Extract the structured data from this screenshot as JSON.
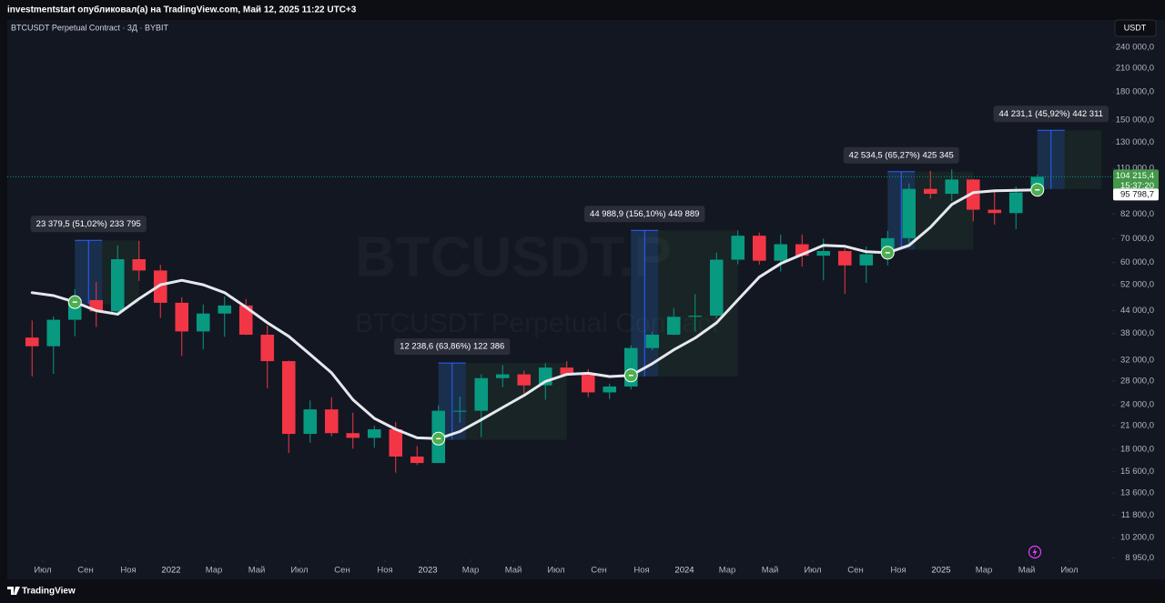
{
  "header": {
    "author_line": "investmentstart опубликовал(а) на TradingView.com, Май 12, 2025 11:22 UTC+3",
    "footer_logo": "TradingView"
  },
  "chart_data": {
    "type": "candlestick",
    "title": "BTCUSDT Perpetual Contract · 3Д · BYBIT",
    "watermark": "BTCUSDT.P",
    "watermark_sub": "BTCUSDT Perpetual Contract",
    "currency": "USDT",
    "log_scale": true,
    "grid": false,
    "colors": {
      "up": "#089981",
      "down": "#f23645",
      "ma": "#e6e8ee",
      "signal": "#4caf50"
    },
    "x": [
      "2021-06",
      "2021-07",
      "2021-08",
      "2021-09",
      "2021-10",
      "2021-11",
      "2021-12",
      "2022-01",
      "2022-02",
      "2022-03",
      "2022-04",
      "2022-05",
      "2022-06",
      "2022-07",
      "2022-08",
      "2022-09",
      "2022-10",
      "2022-11",
      "2022-12",
      "2023-01",
      "2023-02",
      "2023-03",
      "2023-04",
      "2023-05",
      "2023-06",
      "2023-07",
      "2023-08",
      "2023-09",
      "2023-10",
      "2023-11",
      "2023-12",
      "2024-01",
      "2024-02",
      "2024-03",
      "2024-04",
      "2024-05",
      "2024-06",
      "2024-07",
      "2024-08",
      "2024-09",
      "2024-10",
      "2024-11",
      "2024-12",
      "2025-01",
      "2025-02",
      "2025-03",
      "2025-04",
      "2025-05"
    ],
    "open": [
      37000,
      35000,
      41500,
      47100,
      43800,
      61300,
      57000,
      46300,
      38500,
      43200,
      45500,
      37700,
      31800,
      19900,
      23300,
      20000,
      19400,
      20500,
      17200,
      16500,
      23100,
      23100,
      28500,
      29200,
      27200,
      30500,
      29200,
      26000,
      27000,
      34600,
      37700,
      42300,
      42600,
      61100,
      71300,
      60700,
      67500,
      62700,
      64600,
      58900,
      63300,
      70200,
      96400,
      93400,
      102400,
      84300,
      82500,
      94200
    ],
    "high": [
      41300,
      42400,
      50500,
      52900,
      67000,
      69000,
      59100,
      48000,
      45800,
      48200,
      47400,
      40000,
      31900,
      24700,
      25200,
      22800,
      21000,
      21500,
      18400,
      23900,
      25300,
      29200,
      31000,
      29900,
      31400,
      31800,
      30200,
      27500,
      35200,
      38400,
      44700,
      48900,
      64000,
      73800,
      72800,
      71900,
      71900,
      70000,
      65600,
      66500,
      73600,
      99800,
      108300,
      109400,
      102700,
      95000,
      97900,
      105800
    ],
    "low": [
      28800,
      29300,
      37300,
      39600,
      43300,
      53300,
      42000,
      32900,
      34300,
      37200,
      37600,
      26700,
      17600,
      18800,
      19600,
      18100,
      18200,
      15500,
      16300,
      16500,
      21400,
      19500,
      26900,
      25800,
      24800,
      28900,
      25200,
      24900,
      26500,
      34100,
      37600,
      38500,
      41900,
      59300,
      59200,
      56600,
      58500,
      53500,
      49000,
      52600,
      58900,
      66800,
      90500,
      89200,
      78200,
      76600,
      74400,
      93300
    ],
    "close": [
      35000,
      41500,
      47100,
      43800,
      61300,
      57000,
      46300,
      38500,
      43200,
      45500,
      37700,
      31800,
      19900,
      23300,
      20000,
      19400,
      20500,
      17200,
      16500,
      23100,
      23100,
      28500,
      29200,
      27200,
      30500,
      29200,
      26000,
      27000,
      34600,
      37700,
      42300,
      42600,
      61100,
      71300,
      60700,
      67500,
      62700,
      64600,
      58900,
      63300,
      70200,
      96400,
      93400,
      102400,
      84300,
      82500,
      94200,
      104215.4
    ],
    "ma": {
      "values": [
        49400,
        48500,
        46500,
        44000,
        43000,
        47500,
        52000,
        53500,
        52000,
        49400,
        45000,
        40700,
        37300,
        33200,
        29500,
        24800,
        22000,
        20500,
        19400,
        19300,
        20200,
        21800,
        23600,
        25500,
        27900,
        29200,
        29400,
        28800,
        29000,
        31300,
        34200,
        36900,
        40700,
        47200,
        54600,
        59600,
        63200,
        67000,
        66600,
        64300,
        63900,
        67000,
        75300,
        87200,
        94100,
        95200,
        95500,
        95798.7
      ]
    },
    "signals": [
      "2021-08",
      "2023-01",
      "2023-10",
      "2024-10",
      "2025-05"
    ],
    "annotations": [
      {
        "x": "2021-08",
        "x_end": "2021-11",
        "entry": 45824,
        "target": 69204,
        "label": "23 379,5 (51,02%) 233 795"
      },
      {
        "x": "2023-01",
        "x_end": "2023-07",
        "entry": 19165,
        "target": 31404,
        "label": "12 238,6 (63,86%) 122 386"
      },
      {
        "x": "2023-10",
        "x_end": "2024-03",
        "entry": 28820,
        "target": 73809,
        "label": "44 988,9 (156,10%) 449 889"
      },
      {
        "x": "2024-10",
        "x_end": "2025-02",
        "entry": 65167,
        "target": 107701,
        "label": "42 534,5 (65,27%) 425 345"
      },
      {
        "x": "2025-05",
        "x_end": "2025-08",
        "entry": 96322,
        "target": 140553,
        "label": "44 231,1 (45,92%) 442 311"
      }
    ],
    "price_label": {
      "value": 104215.4,
      "label": "104 215,4",
      "time": "15:37:20"
    },
    "ma_label": {
      "value": 95798.7,
      "label": "95 798,7"
    },
    "xlim": [
      "2021-06",
      "2025-08"
    ],
    "xticks": [
      {
        "value": "2021-07",
        "label": "Июл"
      },
      {
        "value": "2021-09",
        "label": "Сен"
      },
      {
        "value": "2021-11",
        "label": "Ноя"
      },
      {
        "value": "2022-01",
        "label": "2022"
      },
      {
        "value": "2022-03",
        "label": "Мар"
      },
      {
        "value": "2022-05",
        "label": "Май"
      },
      {
        "value": "2022-07",
        "label": "Июл"
      },
      {
        "value": "2022-09",
        "label": "Сен"
      },
      {
        "value": "2022-11",
        "label": "Ноя"
      },
      {
        "value": "2023-01",
        "label": "2023"
      },
      {
        "value": "2023-03",
        "label": "Мар"
      },
      {
        "value": "2023-05",
        "label": "Май"
      },
      {
        "value": "2023-07",
        "label": "Июл"
      },
      {
        "value": "2023-09",
        "label": "Сен"
      },
      {
        "value": "2023-11",
        "label": "Ноя"
      },
      {
        "value": "2024-01",
        "label": "2024"
      },
      {
        "value": "2024-03",
        "label": "Мар"
      },
      {
        "value": "2024-05",
        "label": "Май"
      },
      {
        "value": "2024-07",
        "label": "Июл"
      },
      {
        "value": "2024-09",
        "label": "Сен"
      },
      {
        "value": "2024-11",
        "label": "Ноя"
      },
      {
        "value": "2025-01",
        "label": "2025"
      },
      {
        "value": "2025-03",
        "label": "Мар"
      },
      {
        "value": "2025-05",
        "label": "Май"
      },
      {
        "value": "2025-07",
        "label": "Июл"
      }
    ],
    "ylim": [
      7800,
      286000
    ],
    "yticks": [
      {
        "value": 8950,
        "label": "8 950,0"
      },
      {
        "value": 10200,
        "label": "10 200,0"
      },
      {
        "value": 11800,
        "label": "11 800,0"
      },
      {
        "value": 13600,
        "label": "13 600,0"
      },
      {
        "value": 15600,
        "label": "15 600,0"
      },
      {
        "value": 18000,
        "label": "18 000,0"
      },
      {
        "value": 21000,
        "label": "21 000,0"
      },
      {
        "value": 24000,
        "label": "24 000,0"
      },
      {
        "value": 28000,
        "label": "28 000,0"
      },
      {
        "value": 32000,
        "label": "32 000,0"
      },
      {
        "value": 38000,
        "label": "38 000,0"
      },
      {
        "value": 44000,
        "label": "44 000,0"
      },
      {
        "value": 52000,
        "label": "52 000,0"
      },
      {
        "value": 60000,
        "label": "60 000,0"
      },
      {
        "value": 70000,
        "label": "70 000,0"
      },
      {
        "value": 82000,
        "label": "82 000,0"
      },
      {
        "value": 110000,
        "label": "110 000,0"
      },
      {
        "value": 130000,
        "label": "130 000,0"
      },
      {
        "value": 150000,
        "label": "150 000,0"
      },
      {
        "value": 180000,
        "label": "180 000,0"
      },
      {
        "value": 210000,
        "label": "210 000,0"
      },
      {
        "value": 240000,
        "label": "240 000,0"
      }
    ]
  }
}
